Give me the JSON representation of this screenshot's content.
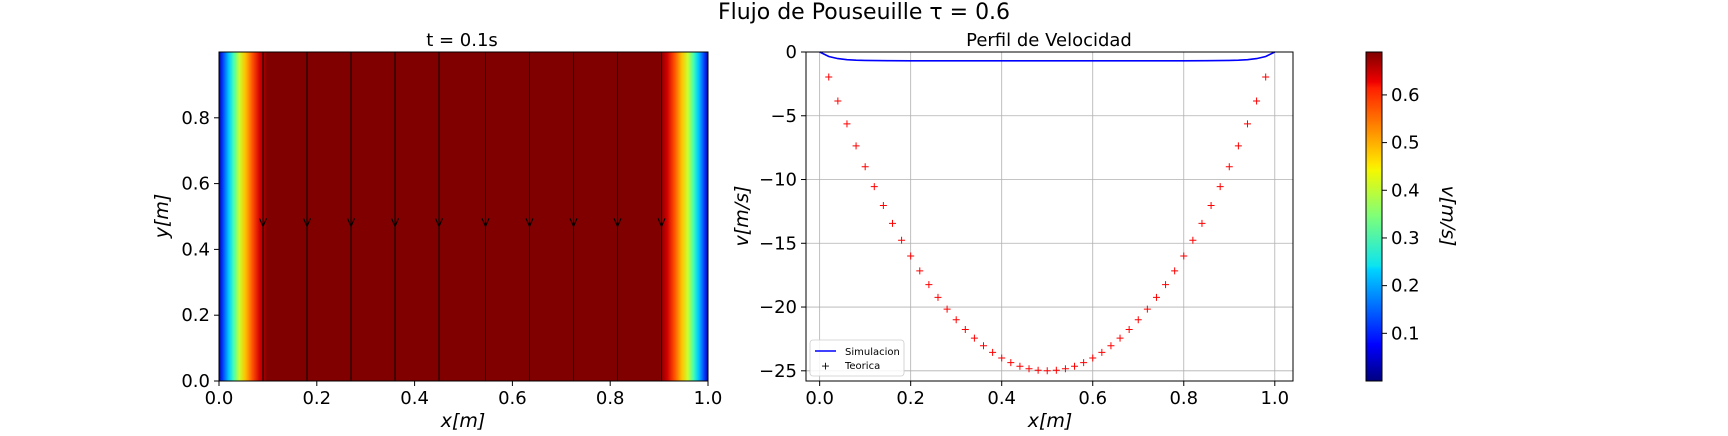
{
  "figure": {
    "title": "Flujo de Pouseuille τ = 0.6"
  },
  "chart_data": [
    {
      "type": "heatmap",
      "title": "t = 0.1s",
      "xlabel": "x[m]",
      "ylabel": "y[m]",
      "xlim": [
        0,
        1
      ],
      "ylim": [
        0,
        1
      ],
      "xticks": [
        "0.0",
        "0.2",
        "0.4",
        "0.6",
        "0.8",
        "1.0"
      ],
      "yticks": [
        "0.0",
        "0.2",
        "0.4",
        "0.6",
        "0.8"
      ],
      "colormap": "jet",
      "description_values": {
        "velocity_profile": "v(x) ≈ 0.69 across channel, dropping to 0 at x = 0 and x = 1 (thin boundary layers of width ≈ 0.1)"
      },
      "streamline_x": [
        0.09,
        0.18,
        0.27,
        0.36,
        0.45,
        0.545,
        0.635,
        0.725,
        0.815,
        0.905
      ],
      "arrow_y": 0.47,
      "colorbar": {
        "label": "v[m/s]",
        "min": 0.0,
        "max": 0.69,
        "ticks": [
          "0.1",
          "0.2",
          "0.3",
          "0.4",
          "0.5",
          "0.6"
        ]
      }
    },
    {
      "type": "line",
      "title": "Perfil de Velocidad",
      "xlabel": "x[m]",
      "ylabel": "v[m/s]",
      "xlim": [
        -0.03,
        1.04
      ],
      "ylim": [
        -25.8,
        0
      ],
      "xticks": [
        "0.0",
        "0.2",
        "0.4",
        "0.6",
        "0.8",
        "1.0"
      ],
      "yticks": [
        "0",
        "−5",
        "−10",
        "−15",
        "−20",
        "−25"
      ],
      "grid": true,
      "legend_position": "lower-left",
      "series": [
        {
          "name": "Simulacion",
          "style": "line",
          "color": "#0000ff",
          "x": [
            0.0,
            0.02,
            0.04,
            0.06,
            0.08,
            0.1,
            0.15,
            0.2,
            0.5,
            0.8,
            0.85,
            0.9,
            0.92,
            0.94,
            0.96,
            0.98,
            1.0
          ],
          "y": [
            0.0,
            -0.35,
            -0.52,
            -0.6,
            -0.64,
            -0.66,
            -0.68,
            -0.69,
            -0.69,
            -0.69,
            -0.68,
            -0.66,
            -0.64,
            -0.6,
            -0.52,
            -0.35,
            0.0
          ]
        },
        {
          "name": "Teorica",
          "style": "markers",
          "color": "#ff0000",
          "x": [
            0.02,
            0.04,
            0.06,
            0.08,
            0.1,
            0.12,
            0.14,
            0.16,
            0.18,
            0.2,
            0.22,
            0.24,
            0.26,
            0.28,
            0.3,
            0.32,
            0.34,
            0.36,
            0.38,
            0.4,
            0.42,
            0.44,
            0.46,
            0.48,
            0.5,
            0.52,
            0.54,
            0.56,
            0.58,
            0.6,
            0.62,
            0.64,
            0.66,
            0.68,
            0.7,
            0.72,
            0.74,
            0.76,
            0.78,
            0.8,
            0.82,
            0.84,
            0.86,
            0.88,
            0.9,
            0.92,
            0.94,
            0.96,
            0.98
          ],
          "y": [
            -1.96,
            -3.84,
            -5.64,
            -7.36,
            -9.0,
            -10.56,
            -12.04,
            -13.44,
            -14.76,
            -16.0,
            -17.16,
            -18.24,
            -19.24,
            -20.16,
            -21.0,
            -21.76,
            -22.44,
            -23.04,
            -23.56,
            -24.0,
            -24.36,
            -24.64,
            -24.84,
            -24.96,
            -25.0,
            -24.96,
            -24.84,
            -24.64,
            -24.36,
            -24.0,
            -23.56,
            -23.04,
            -22.44,
            -21.76,
            -21.0,
            -20.16,
            -19.24,
            -18.24,
            -17.16,
            -16.0,
            -14.76,
            -13.44,
            -12.04,
            -10.56,
            -9.0,
            -7.36,
            -5.64,
            -3.84,
            -1.96
          ]
        }
      ]
    }
  ]
}
